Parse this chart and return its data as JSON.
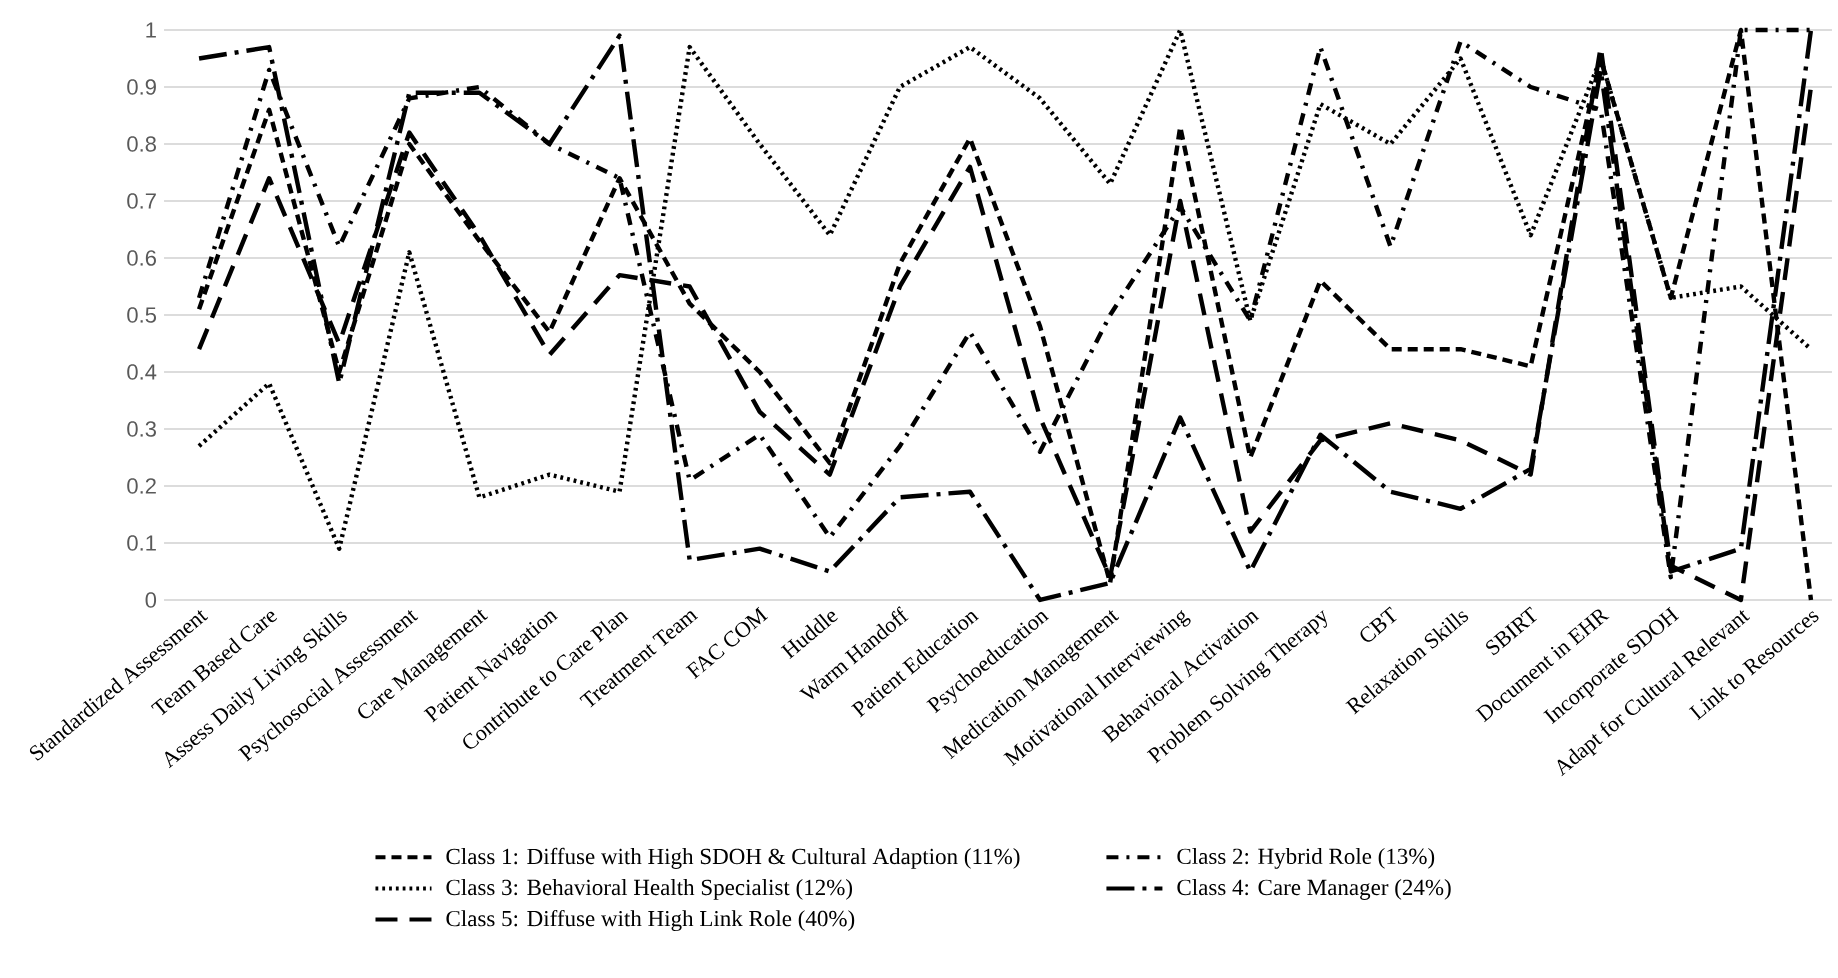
{
  "chart_data": {
    "type": "line",
    "categories": [
      "Standardized Assessment",
      "Team Based Care",
      "Assess Daily Living Skills",
      "Psychosocial Assessment",
      "Care Management",
      "Patient Navigation",
      "Contribute to Care Plan",
      "Treatment Team",
      "FAC COM",
      "Huddle",
      "Warm Handoff",
      "Patient Education",
      "Psychoeducation",
      "Medication Management",
      "Motivational Interviewing",
      "Behavioral Activation",
      "Problem Solving Therapy",
      "CBT",
      "Relaxation Skills",
      "SBIRT",
      "Document in EHR",
      "Incorporate SDOH",
      "Adapt for Cultural Relevant",
      "Link to Resources"
    ],
    "series": [
      {
        "name": "Class 1: Diffuse with High SDOH & Cultural Adaption (11%)",
        "color": "#000000",
        "line_style": "dashed",
        "values": [
          0.51,
          0.86,
          0.4,
          0.8,
          0.63,
          0.47,
          0.74,
          0.52,
          0.4,
          0.24,
          0.59,
          0.81,
          0.48,
          0.03,
          0.83,
          0.25,
          0.56,
          0.44,
          0.44,
          0.41,
          0.95,
          0.53,
          1.0,
          0.0
        ]
      },
      {
        "name": "Class 2: Hybrid Role (13%)",
        "color": "#000000",
        "line_style": "dashdot",
        "values": [
          0.53,
          0.93,
          0.62,
          0.88,
          0.9,
          0.8,
          0.74,
          0.21,
          0.29,
          0.11,
          0.27,
          0.47,
          0.26,
          0.5,
          0.69,
          0.49,
          0.97,
          0.62,
          0.98,
          0.9,
          0.86,
          0.04,
          1.0,
          1.0
        ]
      },
      {
        "name": "Class 3: Behavioral Health Specialist (12%)",
        "color": "#000000",
        "line_style": "dotted",
        "values": [
          0.27,
          0.38,
          0.09,
          0.61,
          0.18,
          0.22,
          0.19,
          0.97,
          0.8,
          0.64,
          0.9,
          0.97,
          0.88,
          0.73,
          1.0,
          0.49,
          0.87,
          0.8,
          0.95,
          0.64,
          0.95,
          0.53,
          0.55,
          0.44
        ]
      },
      {
        "name": "Class 4: Care Manager (24%)",
        "color": "#000000",
        "line_style": "longdashdot",
        "values": [
          0.95,
          0.97,
          0.38,
          0.89,
          0.89,
          0.8,
          0.99,
          0.07,
          0.09,
          0.05,
          0.18,
          0.19,
          0.0,
          0.03,
          0.32,
          0.05,
          0.29,
          0.19,
          0.16,
          0.23,
          0.93,
          0.05,
          0.09,
          1.0
        ]
      },
      {
        "name": "Class 5: Diffuse with High Link Role (40%)",
        "color": "#000000",
        "line_style": "longdash",
        "values": [
          0.44,
          0.74,
          0.45,
          0.82,
          0.64,
          0.43,
          0.57,
          0.55,
          0.33,
          0.22,
          0.55,
          0.76,
          0.32,
          0.04,
          0.7,
          0.12,
          0.28,
          0.31,
          0.28,
          0.22,
          0.97,
          0.06,
          0.0,
          0.9
        ]
      }
    ],
    "ylim": [
      0,
      1
    ],
    "yticks": [
      0,
      0.1,
      0.2,
      0.3,
      0.4,
      0.5,
      0.6,
      0.7,
      0.8,
      0.9,
      1
    ],
    "grid": "y",
    "legend": "bottom",
    "marker": "none"
  }
}
